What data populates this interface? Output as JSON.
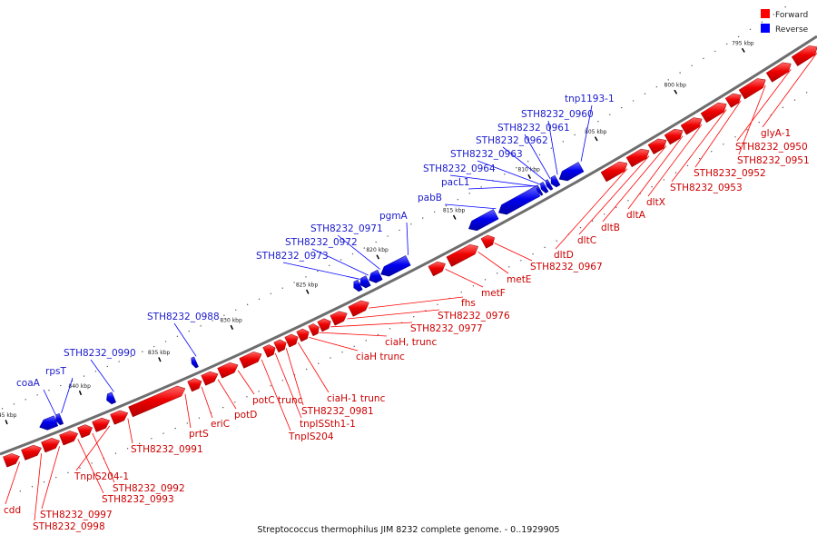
{
  "caption": "Streptococcus thermophilus JIM 8232 complete genome. - 0..1929905",
  "legend": {
    "forward": {
      "label": "Forward",
      "color": "#ff0000"
    },
    "reverse": {
      "label": "Reverse",
      "color": "#0000ff"
    }
  },
  "ticks": [
    "795 kbp",
    "800 kbp",
    "805 kbp",
    "810 kbp",
    "815 kbp",
    "820 kbp",
    "825 kbp",
    "830 kbp",
    "835 kbp",
    "840 kbp",
    "845 kbp"
  ],
  "genes_reverse": [
    "tnp1193-1",
    "STH8232_0960",
    "STH8232_0961",
    "STH8232_0962",
    "STH8232_0963",
    "STH8232_0964",
    "pacL1",
    "pabB",
    "pgmA",
    "STH8232_0971",
    "STH8232_0972",
    "STH8232_0973",
    "STH8232_0988",
    "STH8232_0990",
    "rpsT",
    "coaA"
  ],
  "genes_forward": [
    "glyA-1",
    "STH8232_0950",
    "STH8232_0951",
    "STH8232_0952",
    "STH8232_0953",
    "dltX",
    "dltA",
    "dltB",
    "dltC",
    "dltD",
    "STH8232_0967",
    "metE",
    "metF",
    "fhs",
    "STH8232_0976",
    "STH8232_0977",
    "ciaH, trunc",
    "ciaH trunc",
    "ciaH-1 trunc",
    "STH8232_0981",
    "tnpISSth1-1",
    "TnpIS204",
    "potC trunc",
    "potD",
    "eriC",
    "prtS",
    "STH8232_0991",
    "TnpIS204-1",
    "STH8232_0992",
    "STH8232_0993",
    "STH8232_0997",
    "STH8232_0998",
    "cdd"
  ]
}
